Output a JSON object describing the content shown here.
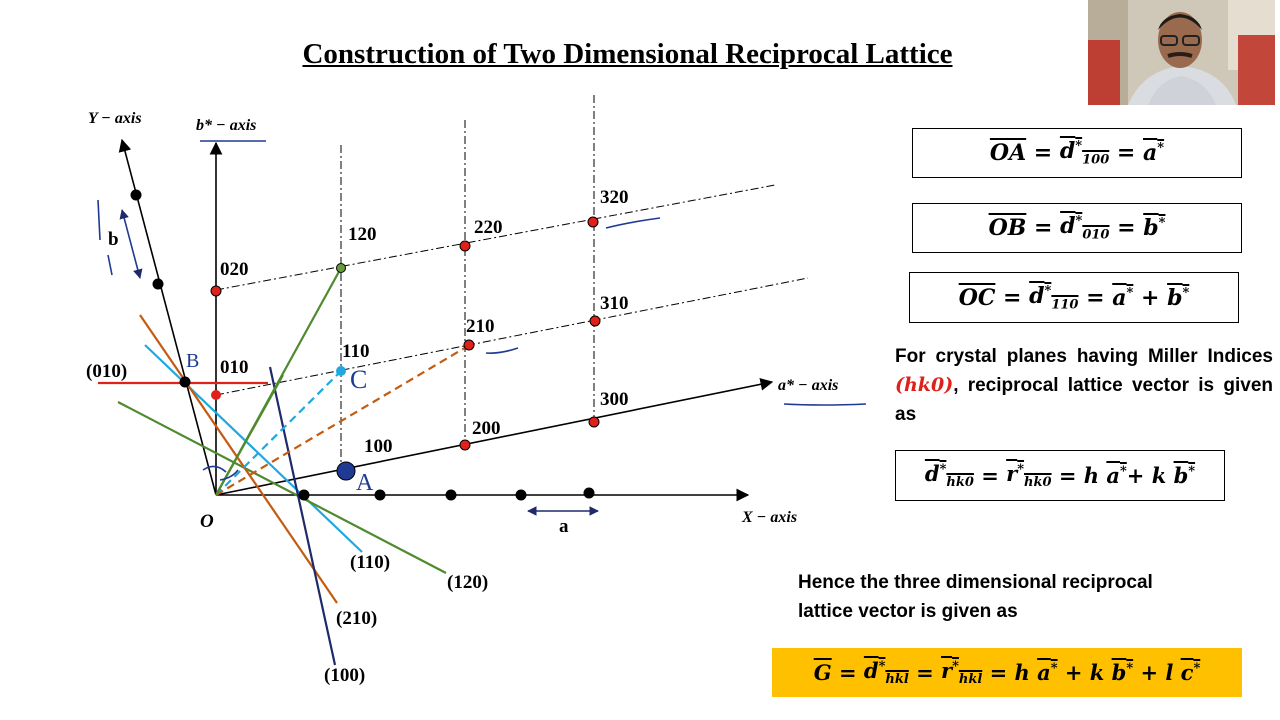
{
  "slide": {
    "title": "Construction of Two Dimensional Reciprocal Lattice"
  },
  "axes": {
    "y_axis": "Y − axis",
    "b_star_axis": "b* − axis",
    "a_star_axis": "a* − axis",
    "x_axis": "X − axis",
    "origin": "O",
    "b_len": "b",
    "a_len": "a"
  },
  "lattice_labels": {
    "p020": "020",
    "p120": "120",
    "p220": "220",
    "p320": "320",
    "p010": "010",
    "p110": "110",
    "p210": "210",
    "p310": "310",
    "p100": "100",
    "p200": "200",
    "p300": "300"
  },
  "plane_labels": {
    "p010": "(010)",
    "p110": "(110)",
    "p120": "(120)",
    "p210": "(210)",
    "p100": "(100)"
  },
  "handwriting": {
    "A": "A",
    "B": "B",
    "C": "C"
  },
  "equations": {
    "oa": {
      "lhs": "OA",
      "mid_base": "d",
      "mid_sub": "100",
      "rhs_base": "a"
    },
    "ob": {
      "lhs": "OB",
      "mid_base": "d",
      "mid_sub": "010",
      "rhs_base": "b"
    },
    "oc": {
      "lhs": "OC",
      "mid_base": "d",
      "mid_sub": "110",
      "rhs_a": "a",
      "rhs_b": "b"
    },
    "hk0": {
      "d_sub": "hk0",
      "r_sub": "hk0",
      "h": "h",
      "k": "k",
      "a": "a",
      "b": "b"
    },
    "hkl": {
      "g": "G",
      "d_sub": "hkl",
      "r_sub": "hkl",
      "h": "h",
      "k": "k",
      "l": "l",
      "a": "a",
      "b": "b",
      "c": "c"
    }
  },
  "text": {
    "hk0_pre": "For crystal planes having Miller Indices ",
    "hk0_idx": "(hk0)",
    "hk0_post": ", reciprocal lattice vector is given as",
    "three_d": "Hence the three dimensional reciprocal lattice vector is given as"
  },
  "colors": {
    "lattice_point": "#e0201b",
    "plane_010": "#e0201b",
    "plane_110": "#1fa8e0",
    "plane_120": "#4e8a2e",
    "plane_210": "#c55a11",
    "plane_100": "#1f2a6b",
    "handwriting": "#1f3a93",
    "highlight": "#ffc000"
  }
}
